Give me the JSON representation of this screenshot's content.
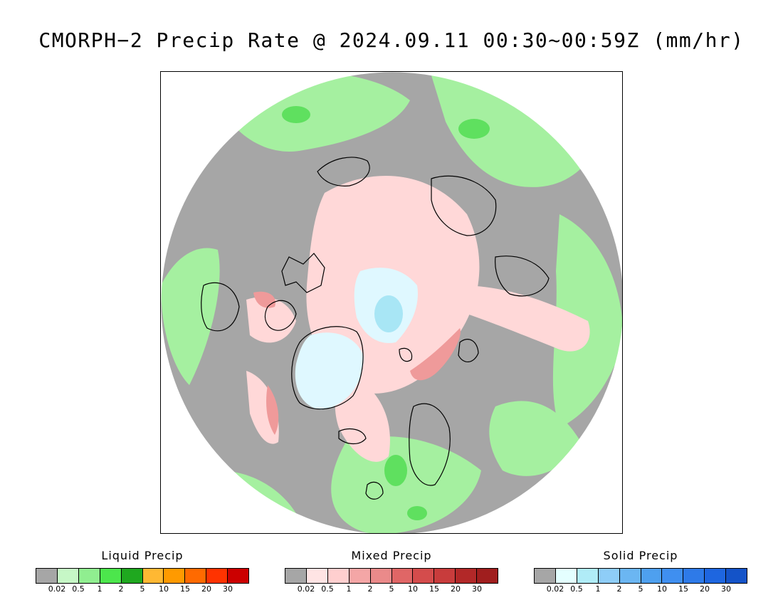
{
  "title": "CMORPH−2 Precip Rate @ 2024.09.11 00:30~00:59Z (mm/hr)",
  "legends": [
    {
      "id": "liquid",
      "title": "Liquid Precip",
      "colors": [
        "#a6a6a6",
        "#c6f7c6",
        "#90ee90",
        "#4ce64c",
        "#1fa81f",
        "#ffb833",
        "#ff9a00",
        "#ff6a00",
        "#ff3300",
        "#cc0000"
      ],
      "ticks": [
        "0.02",
        "0.5",
        "1",
        "2",
        "5",
        "10",
        "15",
        "20",
        "30"
      ]
    },
    {
      "id": "mixed",
      "title": "Mixed Precip",
      "colors": [
        "#a6a6a6",
        "#ffe4e4",
        "#ffcfcf",
        "#f4a6a6",
        "#ea8a8a",
        "#e06666",
        "#d44c4c",
        "#c83c3c",
        "#b22828",
        "#a01e1e"
      ],
      "ticks": [
        "0.02",
        "0.5",
        "1",
        "2",
        "5",
        "10",
        "15",
        "20",
        "30"
      ]
    },
    {
      "id": "solid",
      "title": "Solid Precip",
      "colors": [
        "#a6a6a6",
        "#e4ffff",
        "#b0ecf7",
        "#8ecdf7",
        "#6bb6f2",
        "#4ea0ef",
        "#3f8ff0",
        "#2e7ae8",
        "#1e66e0",
        "#1453c8"
      ],
      "ticks": [
        "0.02",
        "0.5",
        "1",
        "2",
        "5",
        "10",
        "15",
        "20",
        "30"
      ]
    }
  ],
  "map": {
    "background": "#a6a6a6",
    "coast_color": "#000000",
    "liquid_color": "#a5f0a0",
    "liquid_strong": "#5fe05f",
    "mixed_color": "#ffd8d8",
    "mixed_strong": "#ef9a9a",
    "solid_color": "#dff8ff",
    "solid_strong": "#a8e6f5",
    "projection": "north polar stereographic"
  }
}
